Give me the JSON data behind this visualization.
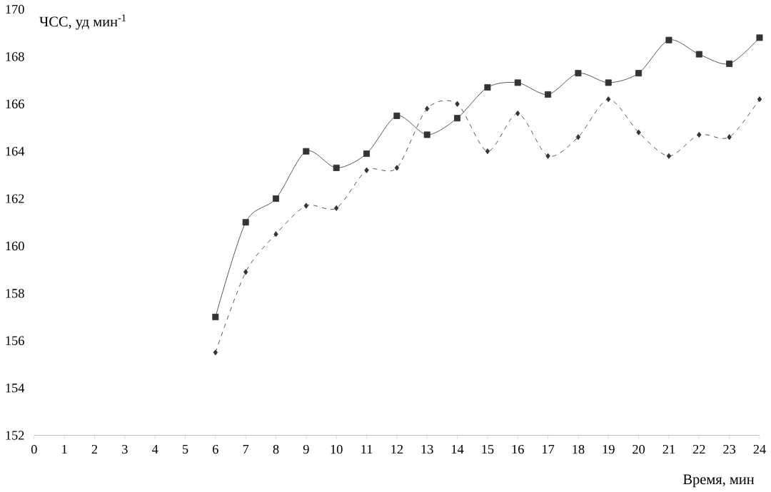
{
  "chart_data": {
    "type": "line",
    "ylabel": "ЧСС, уд мин$^{-1}$",
    "xlabel": "Время, мин",
    "x": [
      6,
      7,
      8,
      9,
      10,
      11,
      12,
      13,
      14,
      15,
      16,
      17,
      18,
      19,
      20,
      21,
      22,
      23,
      24
    ],
    "series": [
      {
        "color": "#333333",
        "marker": "square",
        "line_style": "solid",
        "values": [
          157.0,
          161.0,
          162.0,
          164.0,
          163.3,
          163.9,
          165.5,
          164.7,
          165.4,
          166.7,
          166.9,
          166.4,
          167.3,
          166.9,
          167.3,
          168.7,
          168.1,
          167.7,
          168.8
        ]
      },
      {
        "color": "#333333",
        "marker": "diamond",
        "line_style": "dashed",
        "values": [
          155.5,
          158.9,
          160.5,
          161.7,
          161.6,
          163.2,
          163.3,
          165.8,
          166.0,
          164.0,
          165.6,
          163.8,
          164.6,
          166.2,
          164.8,
          163.8,
          164.7,
          164.6,
          166.2
        ]
      }
    ],
    "xlim": [
      0,
      24
    ],
    "xticks": [
      0,
      1,
      2,
      3,
      4,
      5,
      6,
      7,
      8,
      9,
      10,
      11,
      12,
      13,
      14,
      15,
      16,
      17,
      18,
      19,
      20,
      21,
      22,
      23,
      24
    ],
    "ylim": [
      152,
      170
    ],
    "yticks": [
      152,
      154,
      156,
      158,
      160,
      162,
      164,
      166,
      168,
      170
    ],
    "grid": false
  }
}
